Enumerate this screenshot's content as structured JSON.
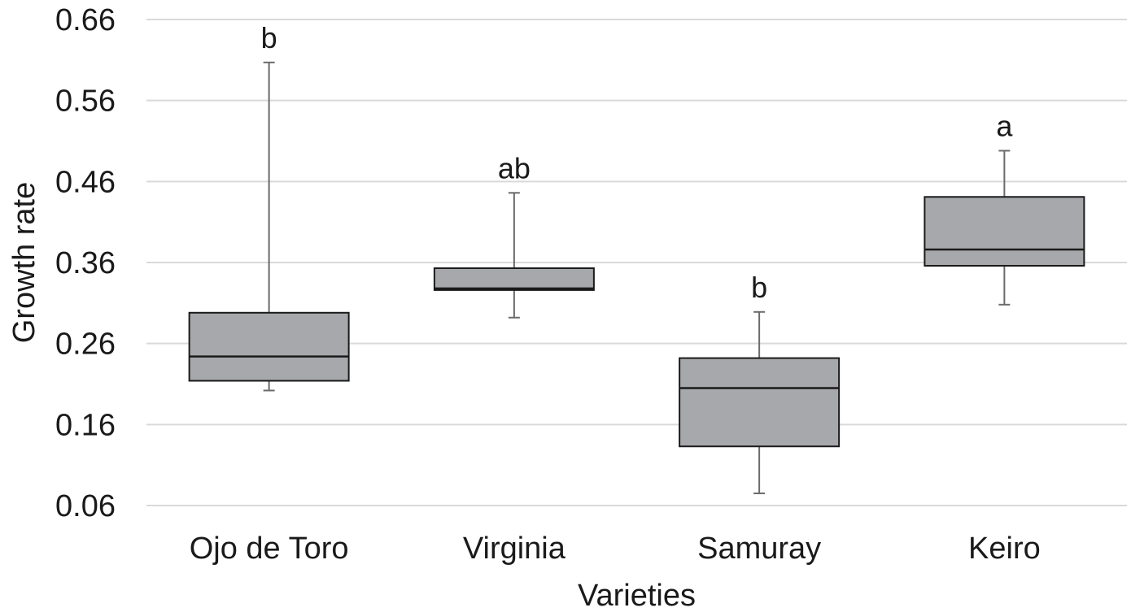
{
  "chart_data": {
    "type": "boxplot",
    "title": "",
    "xlabel": "Varieties",
    "ylabel": "Growth rate",
    "ylim": [
      0.06,
      0.66
    ],
    "yticks": [
      "0.06",
      "0.16",
      "0.26",
      "0.36",
      "0.46",
      "0.56",
      "0.66"
    ],
    "grid": true,
    "colors": {
      "box_fill": "#a7a8ab",
      "box_stroke": "#1a1a1a",
      "whisker": "#6b6b6b",
      "grid": "#d9d9d9"
    },
    "categories": [
      "Ojo de Toro",
      "Virginia",
      "Samuray",
      "Keiro"
    ],
    "boxes": [
      {
        "category": "Ojo de Toro",
        "min": 0.202,
        "q1": 0.214,
        "median": 0.244,
        "q3": 0.298,
        "max": 0.607,
        "letter": "b"
      },
      {
        "category": "Virginia",
        "min": 0.292,
        "q1": 0.326,
        "median": 0.328,
        "q3": 0.353,
        "max": 0.446,
        "letter": "ab"
      },
      {
        "category": "Samuray",
        "min": 0.075,
        "q1": 0.133,
        "median": 0.205,
        "q3": 0.242,
        "max": 0.299,
        "letter": "b"
      },
      {
        "category": "Keiro",
        "min": 0.308,
        "q1": 0.356,
        "median": 0.376,
        "q3": 0.441,
        "max": 0.498,
        "letter": "a"
      }
    ]
  }
}
